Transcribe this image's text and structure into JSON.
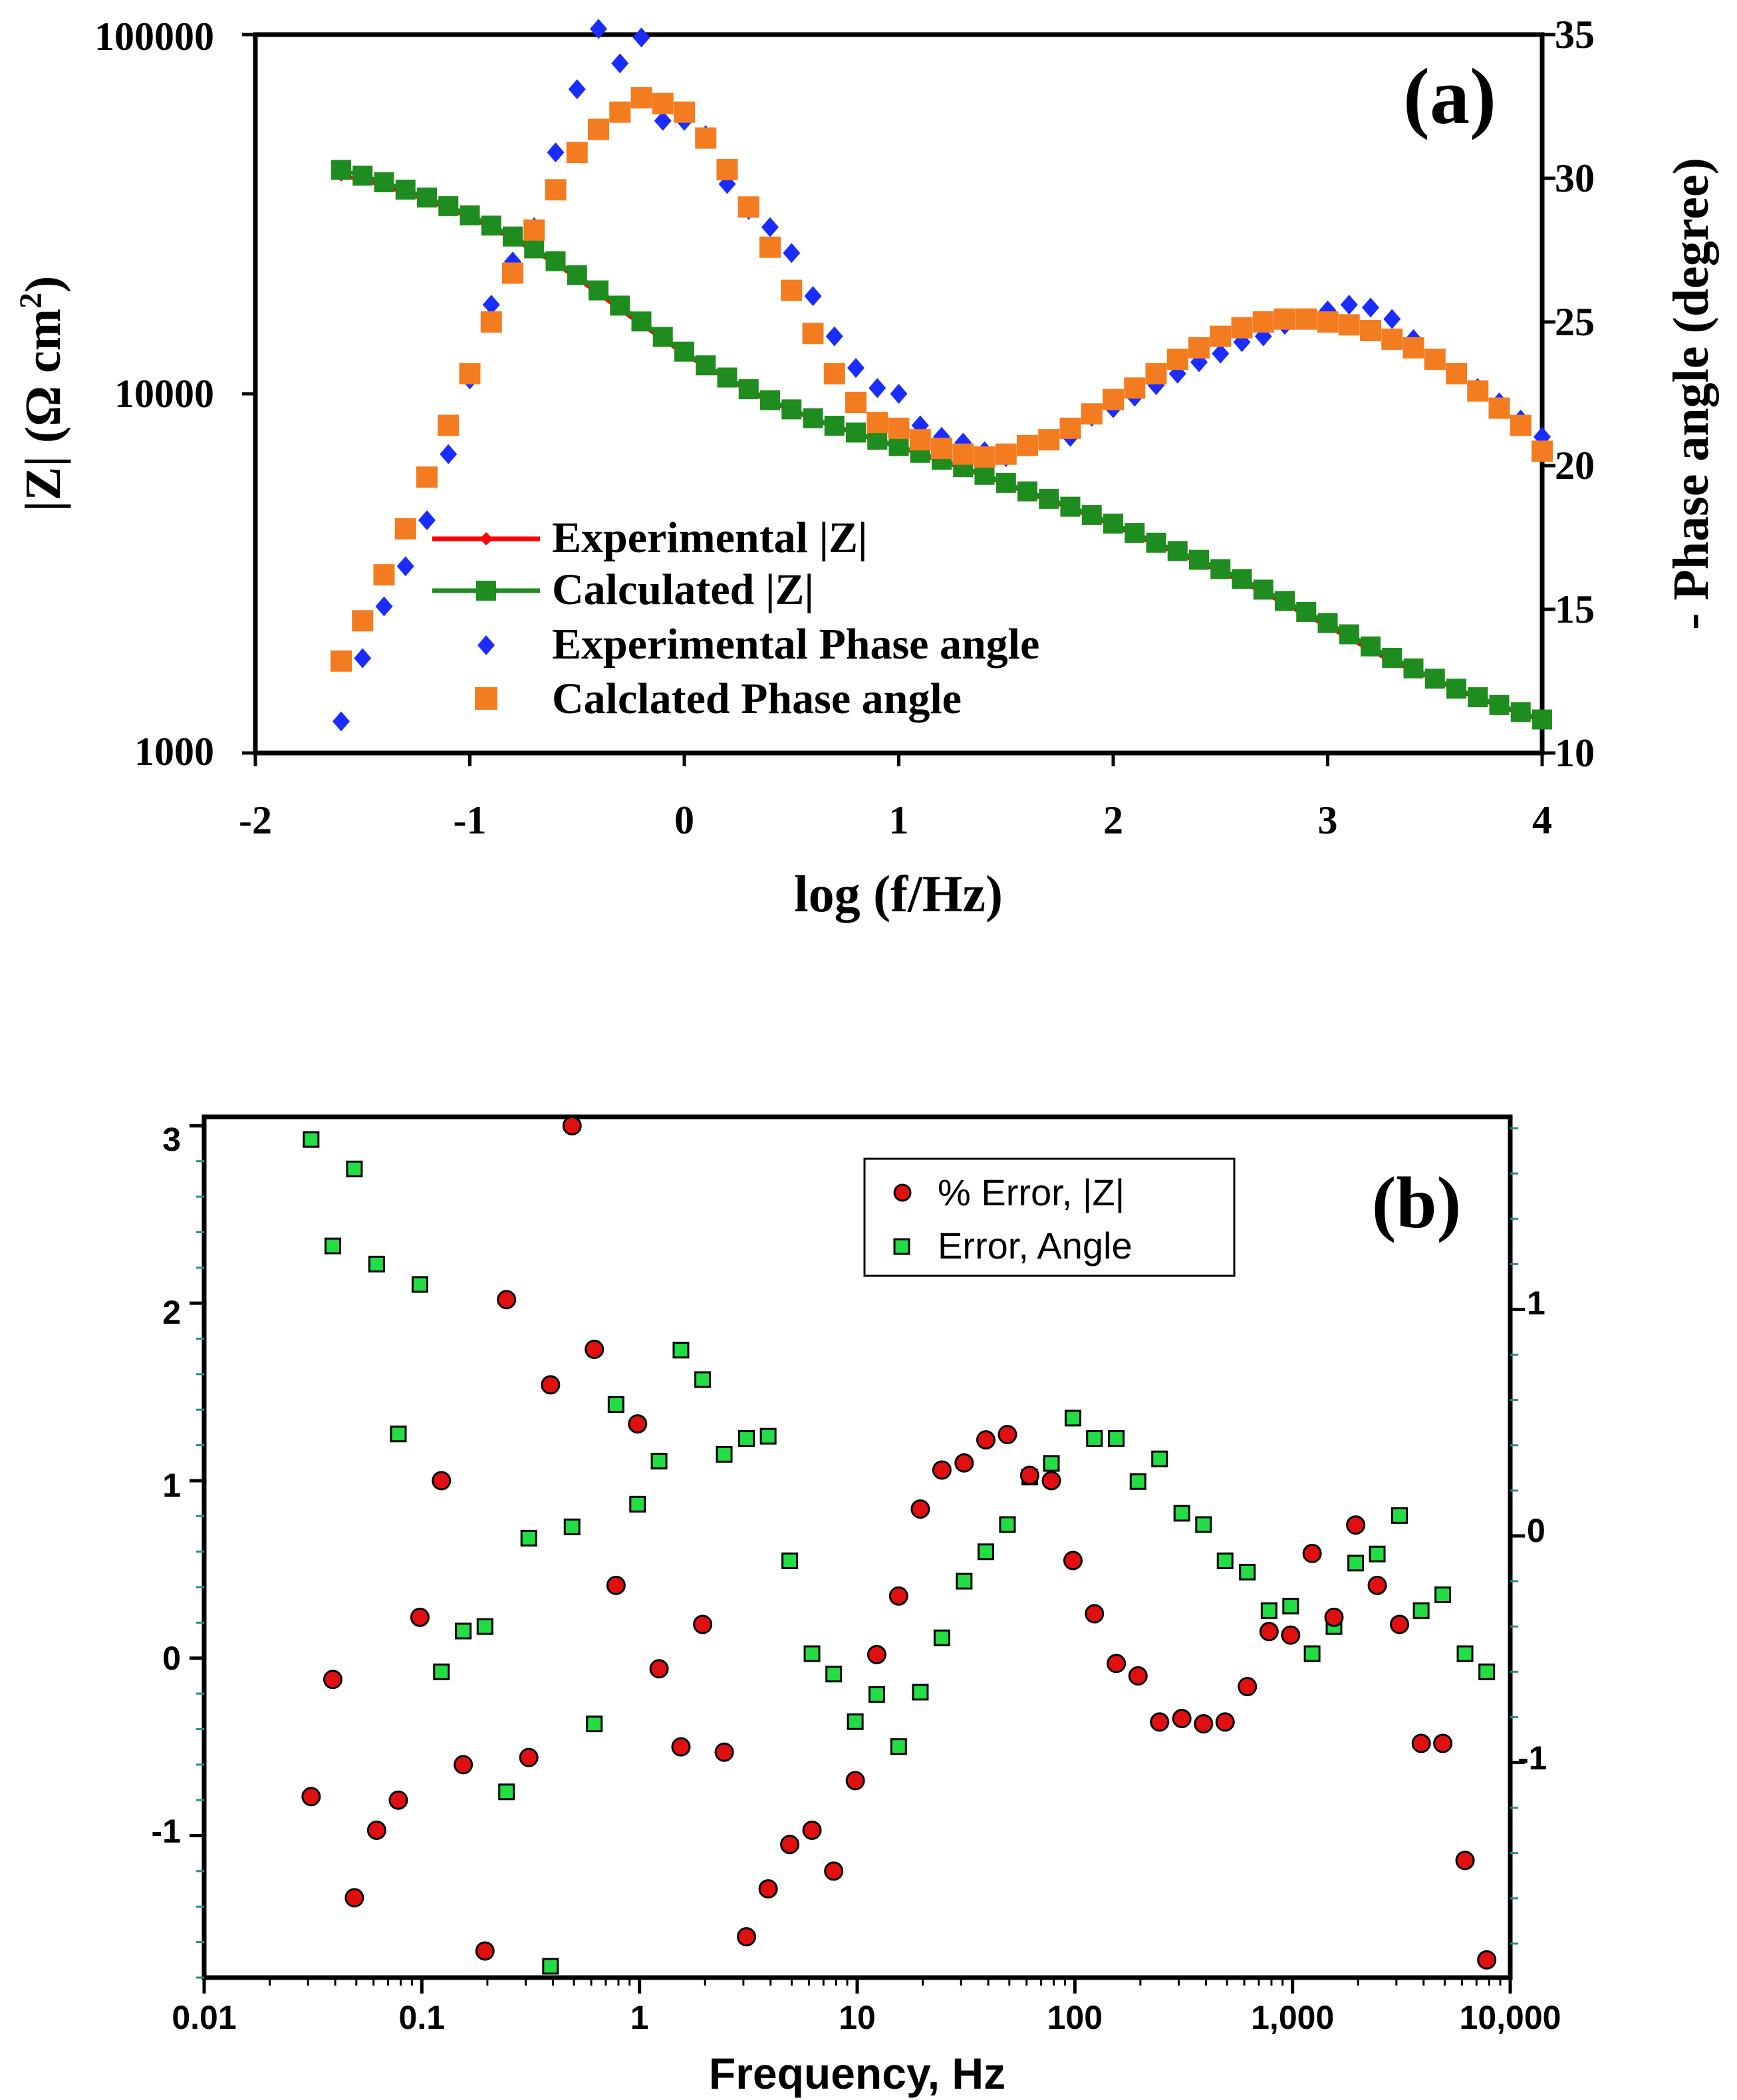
{
  "panels": {
    "a": {
      "panel_label": "(a)",
      "xlabel": "log (f/Hz)",
      "ylabel_left_pre": "|Z| (Ω cm",
      "ylabel_left_sup": "2",
      "ylabel_left_post": ")",
      "ylabel_right": "- Phase angle (degree)",
      "xticks": [
        "-2",
        "-1",
        "0",
        "1",
        "2",
        "3",
        "4"
      ],
      "yticks_left": [
        "1000",
        "10000",
        "100000"
      ],
      "yticks_right": [
        "10",
        "15",
        "20",
        "25",
        "30",
        "35"
      ],
      "legend": [
        "Experimental |Z|",
        "Calculated |Z|",
        "Experimental Phase angle",
        "Calclated Phase angle"
      ]
    },
    "b": {
      "panel_label": "(b)",
      "xlabel": "Frequency,  Hz",
      "xticks": [
        "0.01",
        "0.1",
        "1",
        "10",
        "100",
        "1,000",
        "10,000"
      ],
      "yticks_left": [
        "-1",
        "0",
        "1",
        "2",
        "3"
      ],
      "yticks_right": [
        "-1",
        "0",
        "1"
      ],
      "legend": [
        "% Error,  |Z|",
        "Error,  Angle"
      ]
    }
  },
  "colors": {
    "exp_z": "#ff0000",
    "calc_z": "#1e8c1e",
    "exp_phase": "#1a2cff",
    "calc_phase": "#f47c20",
    "err_z": "#e01010",
    "err_angle": "#22dd44"
  },
  "chart_data": [
    {
      "type": "line",
      "panel": "a",
      "xlabel": "log (f/Hz)",
      "ylabel": "|Z| (Ω cm2)",
      "y2label": "- Phase angle (degree)",
      "xlim": [
        -2,
        4
      ],
      "ylim": [
        1000,
        100000
      ],
      "yscale": "log",
      "y2lim": [
        10,
        35
      ],
      "x": [
        -1.6,
        -1.5,
        -1.4,
        -1.3,
        -1.2,
        -1.1,
        -1.0,
        -0.9,
        -0.8,
        -0.7,
        -0.6,
        -0.5,
        -0.4,
        -0.3,
        -0.2,
        -0.1,
        0.0,
        0.1,
        0.2,
        0.3,
        0.4,
        0.5,
        0.6,
        0.7,
        0.8,
        0.9,
        1.0,
        1.1,
        1.2,
        1.3,
        1.4,
        1.5,
        1.6,
        1.7,
        1.8,
        1.9,
        2.0,
        2.1,
        2.2,
        2.3,
        2.4,
        2.5,
        2.6,
        2.7,
        2.8,
        2.9,
        3.0,
        3.1,
        3.2,
        3.3,
        3.4,
        3.5,
        3.6,
        3.7,
        3.8,
        3.9,
        4.0
      ],
      "series": [
        {
          "name": "Experimental |Z|",
          "axis": "left",
          "values": [
            40500,
            39500,
            37900,
            36300,
            34600,
            32800,
            31000,
            29000,
            27000,
            25000,
            23000,
            21000,
            19000,
            17200,
            15600,
            14200,
            12900,
            11900,
            11000,
            10200,
            9500,
            9000,
            8500,
            8100,
            7750,
            7400,
            7100,
            6800,
            6500,
            6200,
            5900,
            5600,
            5300,
            5050,
            4800,
            4550,
            4300,
            4050,
            3800,
            3600,
            3400,
            3200,
            3000,
            2800,
            2600,
            2420,
            2250,
            2090,
            1930,
            1800,
            1700,
            1600,
            1500,
            1420,
            1350,
            1290,
            1230
          ]
        },
        {
          "name": "Calculated |Z|",
          "axis": "left",
          "values": [
            42000,
            40500,
            38800,
            37000,
            35200,
            33300,
            31400,
            29400,
            27400,
            25400,
            23400,
            21400,
            19400,
            17600,
            15900,
            14400,
            13100,
            12000,
            11100,
            10300,
            9600,
            9050,
            8550,
            8150,
            7800,
            7450,
            7150,
            6850,
            6550,
            6250,
            5950,
            5650,
            5350,
            5100,
            4850,
            4600,
            4350,
            4100,
            3850,
            3650,
            3450,
            3250,
            3050,
            2850,
            2650,
            2470,
            2300,
            2140,
            1980,
            1840,
            1720,
            1610,
            1510,
            1430,
            1360,
            1300,
            1240
          ]
        },
        {
          "name": "Experimental Phase angle",
          "axis": "right",
          "values": [
            11.1,
            13.3,
            15.1,
            16.5,
            18.1,
            20.4,
            23.0,
            25.6,
            27.1,
            28.3,
            30.9,
            33.1,
            35.2,
            34.0,
            34.9,
            32.0,
            32.0,
            31.5,
            29.8,
            28.9,
            28.3,
            27.4,
            25.9,
            24.5,
            23.4,
            22.7,
            22.5,
            21.4,
            21.0,
            20.8,
            20.5,
            20.3,
            20.7,
            20.9,
            21.0,
            21.7,
            22.0,
            22.4,
            22.8,
            23.2,
            23.6,
            23.9,
            24.3,
            24.5,
            24.9,
            25.1,
            25.4,
            25.6,
            25.5,
            25.1,
            24.4,
            23.7,
            23.2,
            22.7,
            22.2,
            21.6,
            21.0
          ]
        },
        {
          "name": "Calclated Phase angle",
          "axis": "right",
          "values": [
            13.2,
            14.6,
            16.2,
            17.8,
            19.6,
            21.4,
            23.2,
            25.0,
            26.7,
            28.2,
            29.6,
            30.9,
            31.7,
            32.3,
            32.8,
            32.6,
            32.3,
            31.4,
            30.3,
            29.0,
            27.6,
            26.1,
            24.6,
            23.2,
            22.2,
            21.5,
            21.3,
            20.9,
            20.6,
            20.4,
            20.3,
            20.4,
            20.7,
            20.9,
            21.3,
            21.8,
            22.3,
            22.7,
            23.2,
            23.7,
            24.1,
            24.5,
            24.8,
            25.0,
            25.1,
            25.1,
            25.0,
            24.9,
            24.7,
            24.4,
            24.1,
            23.7,
            23.2,
            22.6,
            22.0,
            21.4,
            20.5
          ]
        }
      ]
    },
    {
      "type": "scatter",
      "panel": "b",
      "xlabel": "Frequency,  Hz",
      "xscale": "log",
      "xlim": [
        0.01,
        10000
      ],
      "ylim": [
        -1.8,
        3.05
      ],
      "y2lim": [
        -1.95,
        1.85
      ],
      "series": [
        {
          "name": "% Error,  |Z|",
          "axis": "left",
          "points": [
            [
              0.031,
              -0.78
            ],
            [
              0.039,
              -0.12
            ],
            [
              0.049,
              -1.35
            ],
            [
              0.062,
              -0.97
            ],
            [
              0.078,
              -0.8
            ],
            [
              0.098,
              0.23
            ],
            [
              0.123,
              1.0
            ],
            [
              0.155,
              -0.6
            ],
            [
              0.195,
              -1.65
            ],
            [
              0.245,
              2.02
            ],
            [
              0.31,
              -0.56
            ],
            [
              0.39,
              1.54
            ],
            [
              0.49,
              3.0
            ],
            [
              0.62,
              1.74
            ],
            [
              0.78,
              0.41
            ],
            [
              0.98,
              1.32
            ],
            [
              1.23,
              -0.06
            ],
            [
              1.55,
              -0.5
            ],
            [
              1.95,
              0.19
            ],
            [
              2.45,
              -0.53
            ],
            [
              3.1,
              -1.57
            ],
            [
              3.9,
              -1.3
            ],
            [
              4.9,
              -1.05
            ],
            [
              6.2,
              -0.97
            ],
            [
              7.8,
              -1.2
            ],
            [
              9.8,
              -0.69
            ],
            [
              12.3,
              0.02
            ],
            [
              15.5,
              0.35
            ],
            [
              19.5,
              0.84
            ],
            [
              24.5,
              1.06
            ],
            [
              31,
              1.1
            ],
            [
              39,
              1.23
            ],
            [
              49,
              1.26
            ],
            [
              62,
              1.03
            ],
            [
              78,
              1.0
            ],
            [
              98,
              0.55
            ],
            [
              123,
              0.25
            ],
            [
              155,
              -0.03
            ],
            [
              195,
              -0.1
            ],
            [
              245,
              -0.36
            ],
            [
              310,
              -0.34
            ],
            [
              390,
              -0.37
            ],
            [
              490,
              -0.36
            ],
            [
              620,
              -0.16
            ],
            [
              780,
              0.15
            ],
            [
              980,
              0.13
            ],
            [
              1230,
              0.59
            ],
            [
              1550,
              0.23
            ],
            [
              1950,
              0.75
            ],
            [
              2450,
              0.41
            ],
            [
              3100,
              0.19
            ],
            [
              3900,
              -0.48
            ],
            [
              4900,
              -0.48
            ],
            [
              6200,
              -1.14
            ],
            [
              7800,
              -1.7
            ]
          ]
        },
        {
          "name": "Error,  Angle",
          "axis": "right",
          "points": [
            [
              0.031,
              1.75
            ],
            [
              0.039,
              1.28
            ],
            [
              0.049,
              1.62
            ],
            [
              0.062,
              1.2
            ],
            [
              0.078,
              0.45
            ],
            [
              0.098,
              1.11
            ],
            [
              0.123,
              -0.6
            ],
            [
              0.155,
              -0.42
            ],
            [
              0.195,
              -0.4
            ],
            [
              0.245,
              -1.13
            ],
            [
              0.31,
              -0.01
            ],
            [
              0.39,
              -1.9
            ],
            [
              0.49,
              0.04
            ],
            [
              0.62,
              -0.83
            ],
            [
              0.78,
              0.58
            ],
            [
              0.98,
              0.14
            ],
            [
              1.23,
              0.33
            ],
            [
              1.55,
              0.82
            ],
            [
              1.95,
              0.69
            ],
            [
              2.45,
              0.36
            ],
            [
              3.1,
              0.43
            ],
            [
              3.9,
              0.44
            ],
            [
              4.9,
              -0.11
            ],
            [
              6.2,
              -0.52
            ],
            [
              7.8,
              -0.61
            ],
            [
              9.8,
              -0.82
            ],
            [
              12.3,
              -0.7
            ],
            [
              15.5,
              -0.93
            ],
            [
              19.5,
              -0.69
            ],
            [
              24.5,
              -0.45
            ],
            [
              31,
              -0.2
            ],
            [
              39,
              -0.07
            ],
            [
              49,
              0.05
            ],
            [
              62,
              0.26
            ],
            [
              78,
              0.32
            ],
            [
              98,
              0.52
            ],
            [
              123,
              0.43
            ],
            [
              155,
              0.43
            ],
            [
              195,
              0.24
            ],
            [
              245,
              0.34
            ],
            [
              310,
              0.1
            ],
            [
              390,
              0.05
            ],
            [
              490,
              -0.11
            ],
            [
              620,
              -0.16
            ],
            [
              780,
              -0.33
            ],
            [
              980,
              -0.31
            ],
            [
              1230,
              -0.52
            ],
            [
              1550,
              -0.4
            ],
            [
              1950,
              -0.12
            ],
            [
              2450,
              -0.08
            ],
            [
              3100,
              0.09
            ],
            [
              3900,
              -0.33
            ],
            [
              4900,
              -0.26
            ],
            [
              6200,
              -0.52
            ],
            [
              7800,
              -0.6
            ]
          ]
        }
      ]
    }
  ]
}
